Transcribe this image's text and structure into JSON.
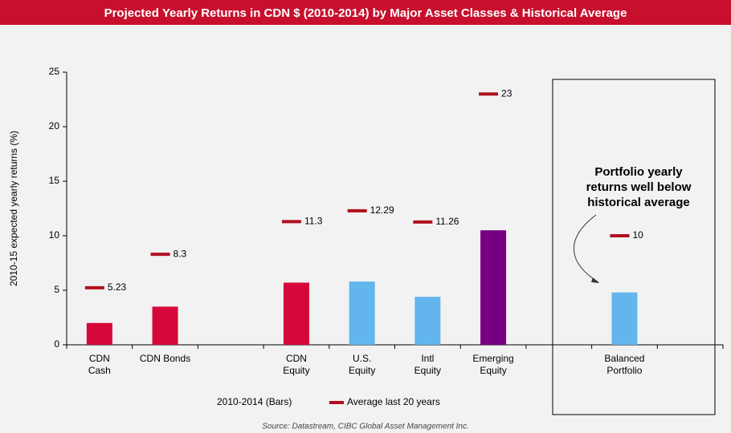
{
  "chart_data": {
    "type": "bar",
    "title": "Projected Yearly Returns in CDN $ (2010-2014) by Major Asset Classes & Historical Average",
    "y_label": "2010-15 expected yearly returns (%)",
    "categories": [
      [
        "CDN",
        "Cash"
      ],
      [
        "CDN Bonds"
      ],
      null,
      [
        "CDN",
        "Equity"
      ],
      [
        "U.S.",
        "Equity"
      ],
      [
        "Intl",
        "Equity"
      ],
      [
        "Emerging",
        "Equity"
      ],
      null,
      [
        "Balanced",
        "Portfolio"
      ],
      null
    ],
    "series": [
      {
        "name": "2010-2014 (Bars)",
        "values": [
          2.0,
          3.5,
          null,
          5.7,
          5.8,
          4.4,
          10.5,
          null,
          4.8,
          null
        ],
        "colors": [
          "#d6083b",
          "#d6083b",
          null,
          "#d6083b",
          "#63b5ee",
          "#63b5ee",
          "#760080",
          null,
          "#63b5ee",
          null
        ]
      },
      {
        "name": "Average last 20 years",
        "color": "#b0101e",
        "values": [
          5.23,
          8.3,
          null,
          11.3,
          12.29,
          11.26,
          23,
          null,
          10,
          null
        ]
      }
    ],
    "ylim": [
      0,
      25
    ],
    "yticks": [
      0,
      5,
      10,
      15,
      20,
      25
    ],
    "annotation": [
      "Portfolio yearly",
      "returns well below",
      "historical average"
    ],
    "source": "Source: Datastream, CIBC Global Asset Management Inc."
  }
}
